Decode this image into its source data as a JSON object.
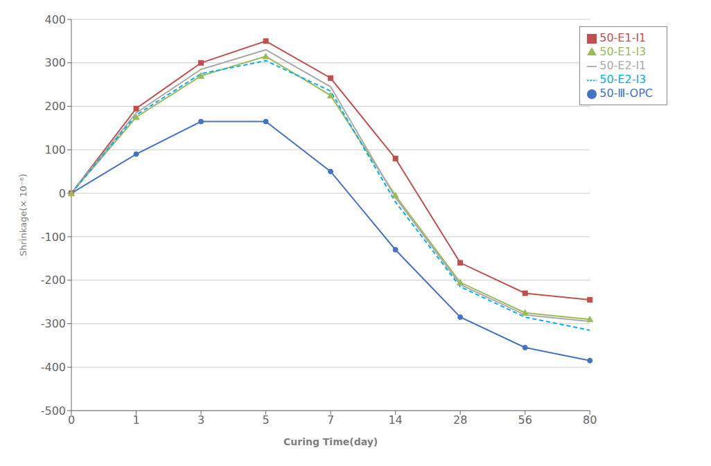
{
  "chart_data": {
    "type": "line",
    "categories": [
      "0",
      "1",
      "3",
      "5",
      "7",
      "14",
      "28",
      "56",
      "80"
    ],
    "series": [
      {
        "name": "50-Ⅲ-OPC",
        "color": "#4472C4",
        "marker": "circle",
        "line_style": "solid",
        "values": [
          0,
          90,
          165,
          165,
          50,
          -130,
          -285,
          -355,
          -385
        ]
      },
      {
        "name": "50-E1-I1",
        "color": "#C0504D",
        "marker": "square",
        "line_style": "solid",
        "values": [
          0,
          195,
          300,
          350,
          265,
          80,
          -160,
          -230,
          -245
        ]
      },
      {
        "name": "50-E1-I3",
        "color": "#9BBB59",
        "marker": "triangle",
        "line_style": "solid",
        "values": [
          0,
          175,
          270,
          315,
          225,
          -5,
          -205,
          -275,
          -290
        ]
      },
      {
        "name": "50-E2-I1",
        "color": "#AAAAAA",
        "marker": "none",
        "line_style": "solid",
        "values": [
          0,
          185,
          285,
          330,
          245,
          -10,
          -210,
          -280,
          -295
        ]
      },
      {
        "name": "50-E2-I3",
        "color": "#00B0F0",
        "marker": "none",
        "line_style": "dashed",
        "values": [
          0,
          180,
          275,
          305,
          235,
          -20,
          -215,
          -285,
          -315
        ]
      }
    ],
    "xlabel": "Curing Time(day)",
    "ylabel": "Shrinkage(× 10⁻⁶)",
    "ylim": [
      -500,
      400
    ],
    "yticks": [
      -500,
      -400,
      -300,
      -200,
      -100,
      0,
      100,
      200,
      300,
      400
    ],
    "grid": "y",
    "legend": "upper right"
  }
}
